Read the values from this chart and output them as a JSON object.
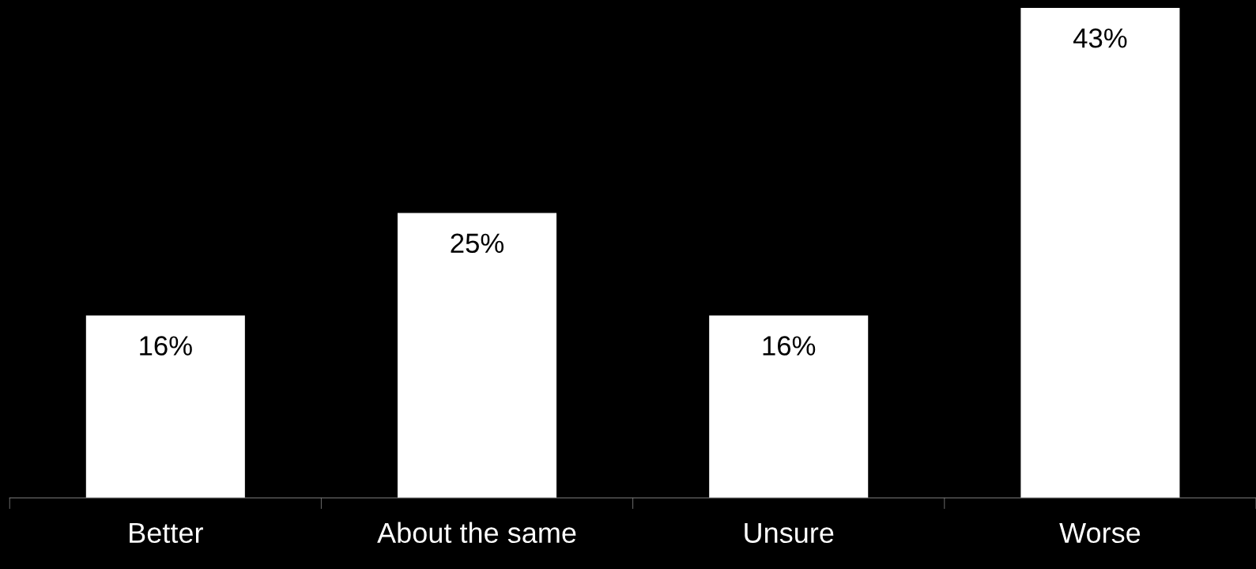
{
  "chart_data": {
    "type": "bar",
    "categories": [
      "Better",
      "About the same",
      "Unsure",
      "Worse"
    ],
    "values": [
      16,
      25,
      16,
      43
    ],
    "value_labels": [
      "16%",
      "25%",
      "16%",
      "43%"
    ],
    "color": "#ffffff",
    "grid": false,
    "legend": false
  }
}
